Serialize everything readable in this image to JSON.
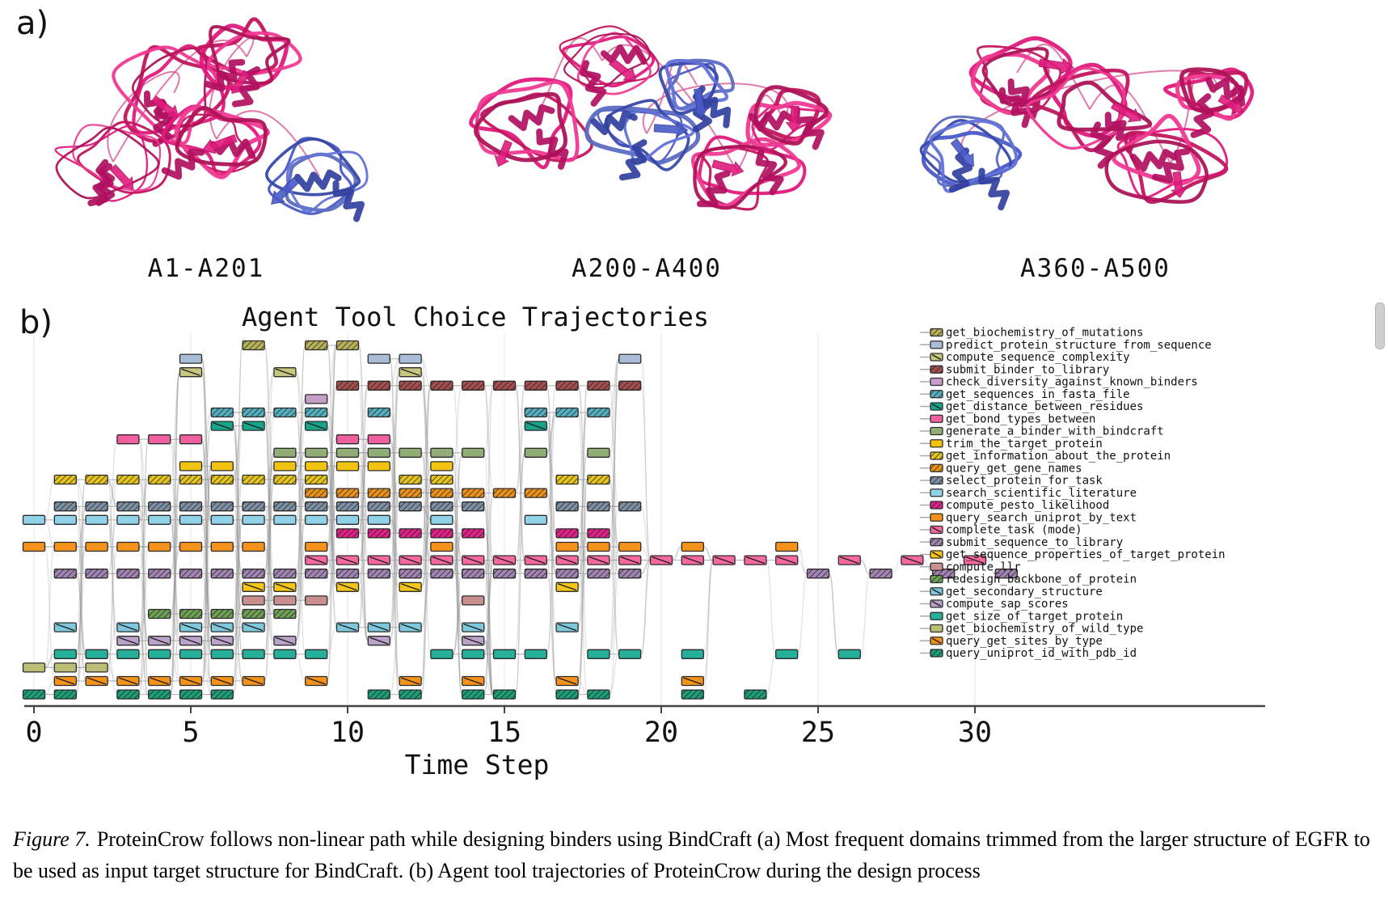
{
  "panel_a": {
    "label": "a)",
    "target_color": "#d6186e",
    "binder_color": "#4d5fc9",
    "structures": [
      {
        "label": "A1-A201"
      },
      {
        "label": "A200-A400"
      },
      {
        "label": "A360-A500"
      }
    ]
  },
  "panel_b": {
    "label": "b)"
  },
  "chart_data": {
    "type": "scatter",
    "title": "Agent Tool Choice Trajectories",
    "xlabel": "Time Step",
    "xticks": [
      0,
      5,
      10,
      15,
      20,
      25,
      30
    ],
    "xlim": [
      0,
      39
    ],
    "grid": "vertical-light",
    "legend_position": "right",
    "axis_color": "#444444",
    "edge_color": "#8a8a8a",
    "tools": [
      {
        "name": "get_biochemistry_of_mutations",
        "color": "#b8b25a",
        "hatch": "dense",
        "steps": [
          7,
          9,
          10
        ]
      },
      {
        "name": "predict_protein_structure_from_sequence",
        "color": "#a9bed6",
        "hatch": "none",
        "steps": [
          5,
          11,
          12,
          19
        ]
      },
      {
        "name": "compute_sequence_complexity",
        "color": "#c8c77e",
        "hatch": "single",
        "steps": [
          5,
          8,
          12
        ]
      },
      {
        "name": "submit_binder_to_library",
        "color": "#a34f4f",
        "hatch": "dense",
        "steps": [
          10,
          11,
          12,
          13,
          14,
          15,
          16,
          17,
          18,
          19
        ]
      },
      {
        "name": "check_diversity_against_known_binders",
        "color": "#c59fc5",
        "hatch": "none",
        "steps": [
          9
        ]
      },
      {
        "name": "get_sequences_in_fasta_file",
        "color": "#55aebe",
        "hatch": "dense",
        "steps": [
          6,
          7,
          8,
          9,
          11,
          16,
          17,
          18
        ]
      },
      {
        "name": "get_distance_between_residues",
        "color": "#17a589",
        "hatch": "single",
        "steps": [
          6,
          7,
          9,
          16
        ]
      },
      {
        "name": "get_bond_types_between",
        "color": "#f0609f",
        "hatch": "none",
        "steps": [
          3,
          4,
          5,
          10,
          11
        ]
      },
      {
        "name": "generate_a_binder_with_bindcraft",
        "color": "#93ad76",
        "hatch": "none",
        "steps": [
          8,
          9,
          10,
          11,
          12,
          13,
          14,
          16,
          18
        ]
      },
      {
        "name": "trim_the_target_protein",
        "color": "#f2c40f",
        "hatch": "none",
        "steps": [
          5,
          6,
          8,
          9,
          10,
          11,
          13
        ]
      },
      {
        "name": "get_information_about_the_protein",
        "color": "#e4c41d",
        "hatch": "dense",
        "steps": [
          1,
          2,
          3,
          4,
          5,
          6,
          7,
          8,
          9,
          12,
          13,
          17,
          18
        ]
      },
      {
        "name": "query_get_gene_names",
        "color": "#e8921b",
        "hatch": "dense",
        "steps": [
          9,
          10,
          11,
          12,
          13,
          14,
          15,
          16
        ]
      },
      {
        "name": "select_protein_for_task",
        "color": "#7e90a4",
        "hatch": "dense",
        "steps": [
          1,
          2,
          3,
          4,
          5,
          6,
          7,
          8,
          9,
          10,
          11,
          12,
          13,
          14,
          17,
          18,
          19
        ]
      },
      {
        "name": "search_scientific_literature",
        "color": "#90d2e8",
        "hatch": "none",
        "steps": [
          0,
          1,
          2,
          3,
          4,
          5,
          6,
          7,
          8,
          9,
          10,
          11,
          13,
          16
        ]
      },
      {
        "name": "compute_pesto_likelihood",
        "color": "#df2188",
        "hatch": "dense",
        "steps": [
          10,
          11,
          12,
          13,
          14,
          17,
          18
        ]
      },
      {
        "name": "query_search_uniprot_by_text",
        "color": "#f5921b",
        "hatch": "none",
        "steps": [
          0,
          1,
          2,
          3,
          4,
          5,
          6,
          7,
          9,
          13,
          17,
          18,
          19,
          21,
          24
        ]
      },
      {
        "name": "complete_task (mode)",
        "color": "#f768a1",
        "hatch": "single",
        "steps": [
          9,
          10,
          11,
          12,
          13,
          14,
          15,
          16,
          17,
          18,
          19,
          20,
          21,
          22,
          23,
          24,
          26,
          28,
          30
        ]
      },
      {
        "name": "submit_sequence_to_library",
        "color": "#a184b1",
        "hatch": "dense",
        "steps": [
          1,
          2,
          3,
          4,
          5,
          6,
          7,
          8,
          9,
          10,
          11,
          12,
          13,
          14,
          15,
          16,
          17,
          18,
          19,
          25,
          27,
          29,
          31
        ]
      },
      {
        "name": "get_sequence_properties_of_target_protein",
        "color": "#f5c51a",
        "hatch": "single",
        "steps": [
          7,
          8,
          10,
          12,
          17
        ]
      },
      {
        "name": "compute_llr",
        "color": "#c98f8f",
        "hatch": "none",
        "steps": [
          7,
          8,
          9,
          14
        ]
      },
      {
        "name": "redesign_backbone_of_protein",
        "color": "#6fa055",
        "hatch": "dense",
        "steps": [
          4,
          5,
          6,
          7,
          8
        ]
      },
      {
        "name": "get_secondary_structure",
        "color": "#7ec8de",
        "hatch": "single",
        "steps": [
          1,
          3,
          5,
          6,
          7,
          10,
          11,
          12,
          14,
          17
        ]
      },
      {
        "name": "compute_sap_scores",
        "color": "#baa2c8",
        "hatch": "single",
        "steps": [
          3,
          4,
          5,
          6,
          8,
          11,
          14
        ]
      },
      {
        "name": "get_size_of_target_protein",
        "color": "#27b099",
        "hatch": "none",
        "steps": [
          1,
          2,
          3,
          4,
          5,
          6,
          7,
          8,
          9,
          13,
          14,
          15,
          16,
          18,
          19,
          21,
          24,
          26
        ]
      },
      {
        "name": "get_biochemistry_of_wild_type",
        "color": "#bdbe76",
        "hatch": "none",
        "steps": [
          0,
          1,
          2
        ]
      },
      {
        "name": "query_get_sites_by_type",
        "color": "#f5921b",
        "hatch": "single",
        "steps": [
          1,
          2,
          3,
          4,
          5,
          6,
          7,
          9,
          12,
          14,
          17,
          21
        ]
      },
      {
        "name": "query_uniprot_id_with_pdb_id",
        "color": "#1d9e78",
        "hatch": "dense",
        "steps": [
          0,
          1,
          3,
          4,
          5,
          6,
          11,
          12,
          14,
          15,
          17,
          18,
          21,
          23
        ]
      }
    ]
  },
  "caption": {
    "label": "Figure 7.",
    "text": "ProteinCrow follows non-linear path while designing binders using BindCraft (a) Most frequent domains trimmed from the larger structure of EGFR to be used as input target structure for BindCraft. (b) Agent tool trajectories of ProteinCrow during the design process"
  }
}
